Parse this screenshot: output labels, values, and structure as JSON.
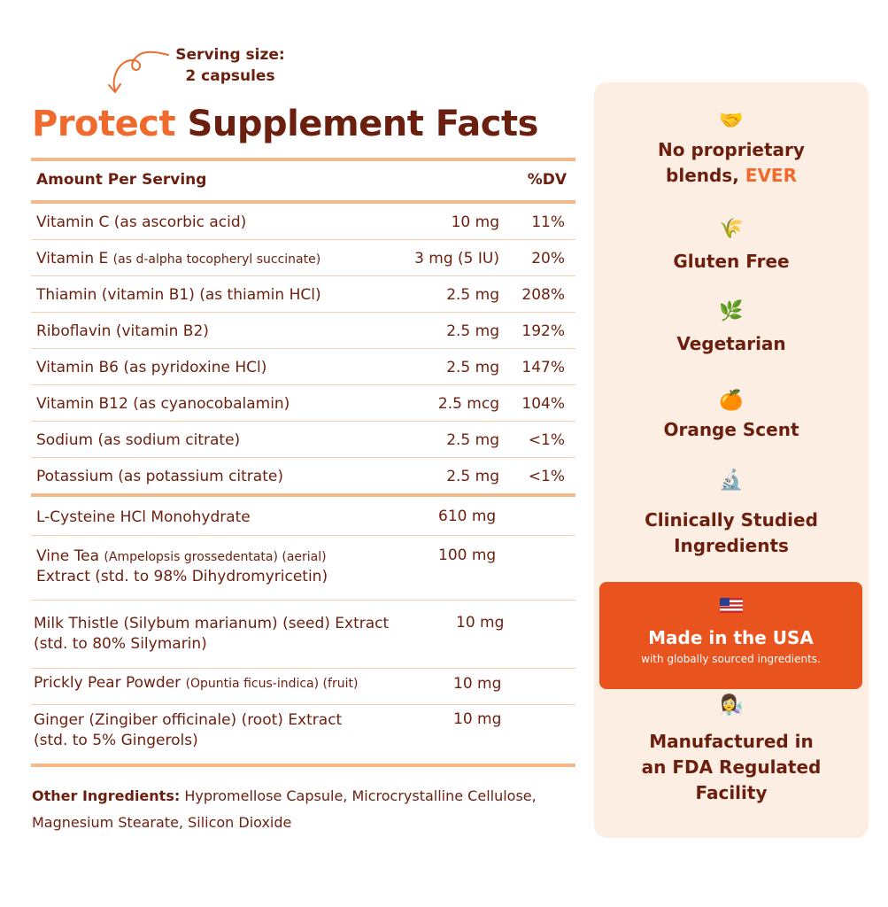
{
  "serving": {
    "line1": "Serving size:",
    "line2": "2 capsules"
  },
  "title": {
    "accent": "Protect",
    "rest": "Supplement Facts"
  },
  "header": {
    "amount": "Amount Per Serving",
    "dv": "%DV"
  },
  "vitamins": [
    {
      "name": "Vitamin C (as ascorbic acid)",
      "note": "",
      "amount": "10 mg",
      "dv": "11%"
    },
    {
      "name": "Vitamin E ",
      "note": "(as d-alpha tocopheryl succinate)",
      "amount": "3 mg (5 IU)",
      "dv": "20%"
    },
    {
      "name": "Thiamin (vitamin B1) (as thiamin HCl)",
      "note": "",
      "amount": "2.5 mg",
      "dv": "208%"
    },
    {
      "name": "Riboflavin (vitamin B2)",
      "note": "",
      "amount": "2.5 mg",
      "dv": "192%"
    },
    {
      "name": "Vitamin B6 (as pyridoxine HCl)",
      "note": "",
      "amount": "2.5 mg",
      "dv": "147%"
    },
    {
      "name": "Vitamin B12 (as cyanocobalamin)",
      "note": "",
      "amount": "2.5 mcg",
      "dv": "104%"
    },
    {
      "name": "Sodium (as sodium citrate)",
      "note": "",
      "amount": "2.5 mg",
      "dv": "<1%"
    },
    {
      "name": "Potassium (as potassium citrate)",
      "note": "",
      "amount": "2.5 mg",
      "dv": "<1%"
    }
  ],
  "blend": [
    {
      "line1": "L-Cysteine HCl Monohydrate",
      "note1": "",
      "line1b": "",
      "line2": "",
      "amount": "610 mg"
    },
    {
      "line1": "Vine Tea ",
      "note1": "(Ampelopsis grossedentata) (aerial)",
      "line1b": "",
      "line2": "Extract (std. to 98% Dihydromyricetin)",
      "amount": "100 mg"
    },
    {
      "line1": "Milk Thistle (Silybum marianum) (seed) Extract",
      "note1": "",
      "line1b": "",
      "line2": "(std. to 80% Silymarin)",
      "amount": "10 mg"
    },
    {
      "line1": "Prickly Pear Powder ",
      "note1": "(Opuntia ficus-indica) (fruit)",
      "line1b": "",
      "line2": "",
      "amount": "10 mg"
    },
    {
      "line1": "Ginger (Zingiber officinale) (root) Extract",
      "note1": "",
      "line1b": "",
      "line2": "(std. to 5% Gingerols)",
      "amount": "10 mg"
    }
  ],
  "other": {
    "label": "Other Ingredients:",
    "text": " Hypromellose Capsule, Microcrystalline Cellulose, Magnesium Stearate, Silicon Dioxide"
  },
  "features": [
    {
      "icon": "🤝",
      "line1": "No proprietary",
      "line2": "blends, ",
      "highlight": "EVER"
    },
    {
      "icon": "🌾",
      "line1": "Gluten Free"
    },
    {
      "icon": "🌿",
      "line1": "Vegetarian"
    },
    {
      "icon": "🍊",
      "line1": "Orange Scent"
    },
    {
      "icon": "🔬",
      "line1": "Clinically Studied",
      "line2": "Ingredients"
    },
    {
      "icon": "👩‍🔬",
      "line1": "Manufactured in",
      "line2": "an FDA Regulated",
      "line3": "Facility"
    }
  ],
  "usa": {
    "title": "Made in the USA",
    "sub": "with globally sourced ingredients."
  },
  "colors": {
    "accent": "#ef6a2c",
    "brown": "#6b1f0e",
    "panel": "#fdeee3",
    "usa": "#e9531d"
  }
}
